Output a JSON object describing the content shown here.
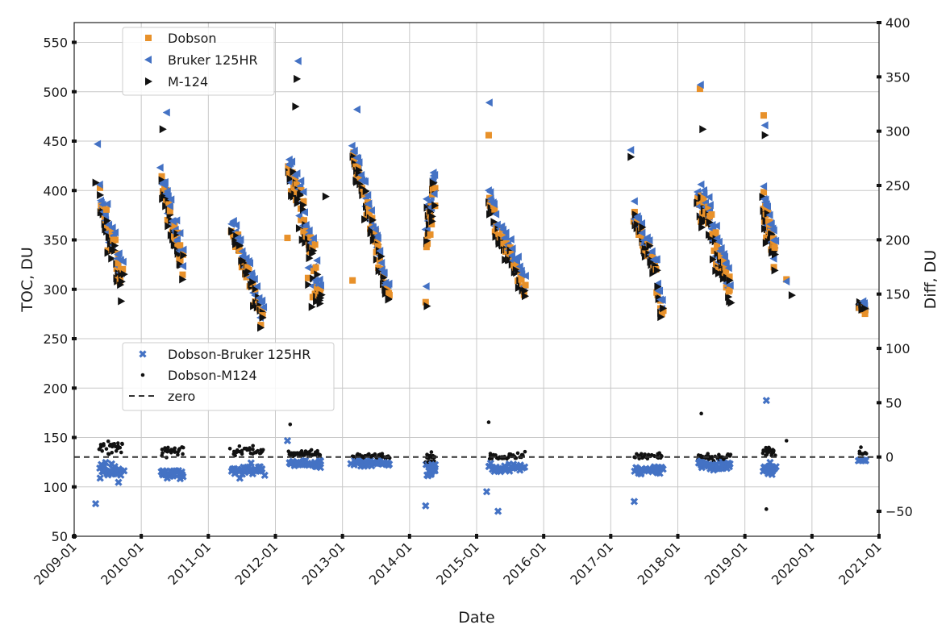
{
  "chart_data": {
    "type": "scatter",
    "title": "",
    "xlabel": "Date",
    "ylabel_left": "TOC, DU",
    "ylabel_right": "Diff, DU",
    "x_ticks": [
      "2009-01",
      "2010-01",
      "2011-01",
      "2012-01",
      "2013-01",
      "2014-01",
      "2015-01",
      "2016-01",
      "2017-01",
      "2018-01",
      "2019-01",
      "2020-01",
      "2021-01"
    ],
    "y_left_ticks": [
      50,
      100,
      150,
      200,
      250,
      300,
      350,
      400,
      450,
      500,
      550
    ],
    "y_right_ticks": [
      -50,
      0,
      50,
      100,
      150,
      200,
      250,
      300,
      350,
      400
    ],
    "x_range_years": [
      2009.0,
      2021.0
    ],
    "y_left_range": [
      50,
      570
    ],
    "y_right_range": [
      -73,
      400
    ],
    "grid": true,
    "legend_top": {
      "placement": "top-left",
      "entries": [
        {
          "label": "Dobson",
          "marker": "square",
          "color": "#e8912a"
        },
        {
          "label": "Bruker 125HR",
          "marker": "triangle-left",
          "color": "#4472c4"
        },
        {
          "label": "M-124",
          "marker": "triangle-right",
          "color": "#111111"
        }
      ]
    },
    "legend_bottom": {
      "placement": "center-left",
      "entries": [
        {
          "label": "Dobson-Bruker 125HR",
          "marker": "x",
          "color": "#4472c4"
        },
        {
          "label": "Dobson-M124",
          "marker": "dot",
          "color": "#111111"
        },
        {
          "label": "zero",
          "marker": "dashed-line",
          "color": "#333333"
        }
      ]
    },
    "seasons": [
      {
        "start": 2009.38,
        "end": 2009.72,
        "toc_start": 385,
        "toc_end": 305,
        "spread": 25,
        "n": 26,
        "dobson_off": 2,
        "bruker_off": 8,
        "m124_off": -4,
        "dob_diff": -12,
        "m124_diff": 9,
        "dspread": 12
      },
      {
        "start": 2010.3,
        "end": 2010.62,
        "toc_start": 405,
        "toc_end": 320,
        "spread": 30,
        "n": 26,
        "dobson_off": 3,
        "bruker_off": 10,
        "m124_off": -3,
        "dob_diff": -15,
        "m124_diff": 5,
        "dspread": 8
      },
      {
        "start": 2011.35,
        "end": 2011.82,
        "toc_start": 360,
        "toc_end": 270,
        "spread": 22,
        "n": 30,
        "dobson_off": -2,
        "bruker_off": 7,
        "m124_off": -2,
        "dob_diff": -12,
        "m124_diff": 5,
        "dspread": 9
      },
      {
        "start": 2012.2,
        "end": 2012.68,
        "toc_start": 420,
        "toc_end": 285,
        "spread": 40,
        "n": 38,
        "dobson_off": 5,
        "bruker_off": 12,
        "m124_off": -1,
        "dob_diff": -6,
        "m124_diff": 3,
        "dspread": 6
      },
      {
        "start": 2013.15,
        "end": 2013.7,
        "toc_start": 440,
        "toc_end": 290,
        "spread": 20,
        "n": 38,
        "dobson_off": 0,
        "bruker_off": 8,
        "m124_off": -3,
        "dob_diff": -6,
        "m124_diff": 1,
        "dspread": 5
      },
      {
        "start": 2014.25,
        "end": 2014.38,
        "toc_start": 340,
        "toc_end": 400,
        "spread": 38,
        "n": 18,
        "dobson_off": -2,
        "bruker_off": 12,
        "m124_off": 2,
        "dob_diff": -12,
        "m124_diff": 0,
        "dspread": 8
      },
      {
        "start": 2015.18,
        "end": 2015.72,
        "toc_start": 390,
        "toc_end": 295,
        "spread": 20,
        "n": 32,
        "dobson_off": 2,
        "bruker_off": 10,
        "m124_off": -4,
        "dob_diff": -10,
        "m124_diff": 1,
        "dspread": 6
      },
      {
        "start": 2017.35,
        "end": 2017.78,
        "toc_start": 375,
        "toc_end": 285,
        "spread": 22,
        "n": 28,
        "dobson_off": 0,
        "bruker_off": 7,
        "m124_off": -2,
        "dob_diff": -12,
        "m124_diff": 1,
        "dspread": 5
      },
      {
        "start": 2018.3,
        "end": 2018.78,
        "toc_start": 395,
        "toc_end": 300,
        "spread": 30,
        "n": 38,
        "dobson_off": 3,
        "bruker_off": 10,
        "m124_off": -4,
        "dob_diff": -8,
        "m124_diff": 0,
        "dspread": 7
      },
      {
        "start": 2019.28,
        "end": 2019.45,
        "toc_start": 380,
        "toc_end": 335,
        "spread": 35,
        "n": 24,
        "dobson_off": 3,
        "bruker_off": 10,
        "m124_off": -3,
        "dob_diff": -10,
        "m124_diff": 5,
        "dspread": 8
      },
      {
        "start": 2020.7,
        "end": 2020.8,
        "toc_start": 285,
        "toc_end": 280,
        "spread": 6,
        "n": 7,
        "dobson_off": -3,
        "bruker_off": 3,
        "m124_off": 0,
        "dob_diff": -2,
        "m124_diff": 3,
        "dspread": 3
      }
    ],
    "extra_points": {
      "dobson": [
        [
          2012.18,
          352
        ],
        [
          2013.15,
          309
        ],
        [
          2014.24,
          287
        ],
        [
          2015.18,
          456
        ],
        [
          2018.33,
          503
        ],
        [
          2019.28,
          476
        ],
        [
          2019.62,
          310
        ]
      ],
      "bruker": [
        [
          2009.35,
          447
        ],
        [
          2010.38,
          479
        ],
        [
          2012.34,
          531
        ],
        [
          2013.22,
          482
        ],
        [
          2014.25,
          303
        ],
        [
          2015.19,
          489
        ],
        [
          2017.3,
          441
        ],
        [
          2018.34,
          507
        ],
        [
          2019.3,
          466
        ],
        [
          2019.62,
          308
        ]
      ],
      "m124": [
        [
          2009.32,
          408
        ],
        [
          2009.7,
          288
        ],
        [
          2010.32,
          462
        ],
        [
          2012.32,
          513
        ],
        [
          2012.75,
          394
        ],
        [
          2014.26,
          283
        ],
        [
          2017.3,
          434
        ],
        [
          2018.37,
          462
        ],
        [
          2019.3,
          456
        ],
        [
          2019.7,
          294
        ],
        [
          2012.3,
          485
        ]
      ],
      "diff_bruker": [
        [
          2009.32,
          -43
        ],
        [
          2012.18,
          15
        ],
        [
          2014.24,
          -45
        ],
        [
          2015.15,
          -32
        ],
        [
          2015.32,
          -50
        ],
        [
          2017.35,
          -41
        ],
        [
          2019.32,
          52
        ]
      ],
      "diff_m124": [
        [
          2012.22,
          30
        ],
        [
          2015.18,
          32
        ],
        [
          2018.35,
          40
        ],
        [
          2019.32,
          -48
        ],
        [
          2019.62,
          15
        ],
        [
          2020.73,
          9
        ]
      ]
    }
  }
}
